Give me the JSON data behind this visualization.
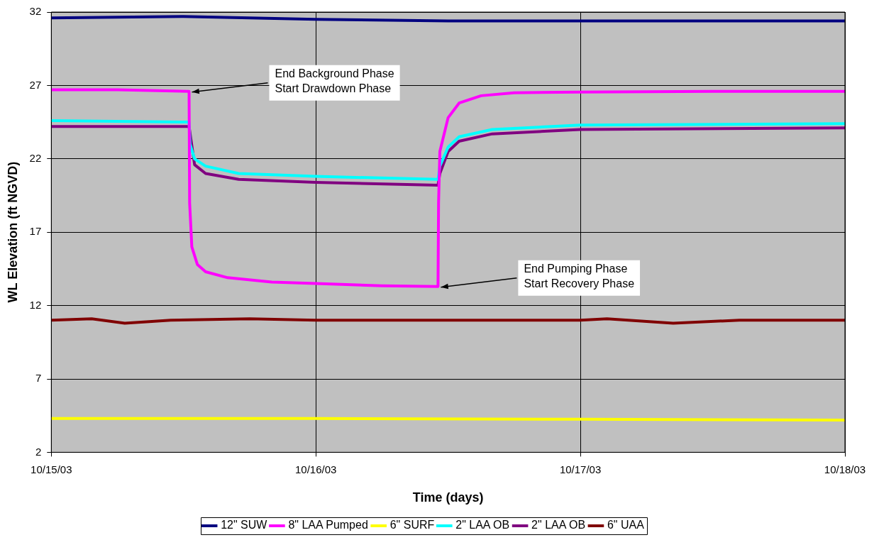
{
  "chart_data": {
    "type": "line",
    "xlabel": "Time (days)",
    "ylabel": "WL Elevation (ft NGVD)",
    "xlim": [
      "--10-15",
      "--10-18"
    ],
    "xticks": [
      {
        "value": "--10-15",
        "label": "10/15/03"
      },
      {
        "value": "--10-16",
        "label": "10/16/03"
      },
      {
        "value": "--10-17",
        "label": "10/17/03"
      },
      {
        "value": "--10-18",
        "label": "10/18/03"
      }
    ],
    "ylim": [
      2,
      32
    ],
    "yticks": [
      2,
      7,
      12,
      17,
      22,
      27,
      32
    ],
    "grid": true,
    "legend": "bottom",
    "marker": "none",
    "line_style": "solid",
    "series": [
      {
        "name": "12\" SUW",
        "color": "#000080",
        "x": [
          "--10-15",
          "--10-15T12:00",
          "--10-16",
          "--10-16T12:00",
          "--10-17",
          "--10-18"
        ],
        "values": [
          31.6,
          31.7,
          31.5,
          31.4,
          31.4,
          31.4
        ]
      },
      {
        "name": "8\" LAA Pumped",
        "color": "#ff00ff",
        "x": [
          "--10-15",
          "--10-15T06:00",
          "--10-15T12:30",
          "--10-15T12:33",
          "--10-15T12:45",
          "--10-15T13:15",
          "--10-15T14:00",
          "--10-15T16:00",
          "--10-15T20:00",
          "--10-16",
          "--10-16T06:00",
          "--10-16T11:05",
          "--10-16T11:08",
          "--10-16T11:15",
          "--10-16T12:00",
          "--10-16T13:00",
          "--10-16T15:00",
          "--10-16T18:00",
          "--10-17",
          "--10-17T12:00",
          "--10-18"
        ],
        "values": [
          26.7,
          26.7,
          26.6,
          19.0,
          16.0,
          14.8,
          14.3,
          13.9,
          13.6,
          13.5,
          13.35,
          13.3,
          19.0,
          22.5,
          24.8,
          25.8,
          26.3,
          26.5,
          26.55,
          26.6,
          26.6
        ]
      },
      {
        "name": "6\" SURF",
        "color": "#ffff00",
        "x": [
          "--10-15",
          "--10-16",
          "--10-17",
          "--10-18"
        ],
        "values": [
          4.3,
          4.3,
          4.25,
          4.2
        ]
      },
      {
        "name": "2\" LAA OB",
        "color": "#00ffff",
        "x": [
          "--10-15",
          "--10-15T12:30",
          "--10-15T12:35",
          "--10-15T13:00",
          "--10-15T14:00",
          "--10-15T17:00",
          "--10-16",
          "--10-16T11:05",
          "--10-16T11:15",
          "--10-16T12:00",
          "--10-16T13:00",
          "--10-16T16:00",
          "--10-17",
          "--10-18"
        ],
        "values": [
          24.6,
          24.5,
          23.0,
          22.0,
          21.5,
          21.0,
          20.8,
          20.6,
          21.5,
          22.8,
          23.5,
          24.0,
          24.3,
          24.4
        ]
      },
      {
        "name": "2\" LAA OB",
        "color": "#800080",
        "x": [
          "--10-15",
          "--10-15T12:30",
          "--10-15T13:00",
          "--10-15T14:00",
          "--10-15T17:00",
          "--10-16",
          "--10-16T11:05",
          "--10-16T11:15",
          "--10-16T12:00",
          "--10-16T13:00",
          "--10-16T16:00",
          "--10-17",
          "--10-18"
        ],
        "values": [
          24.2,
          24.2,
          21.6,
          21.0,
          20.6,
          20.4,
          20.2,
          21.0,
          22.5,
          23.2,
          23.7,
          24.0,
          24.1
        ]
      },
      {
        "name": "6\" UAA",
        "color": "#800000",
        "x": [
          "--10-15",
          "--10-15T03:40",
          "--10-15T06:40",
          "--10-15T10:50",
          "--10-15T18:00",
          "--10-16",
          "--10-16T07:10",
          "--10-16T12:00",
          "--10-17",
          "--10-17T02:25",
          "--10-17T08:25",
          "--10-17T14:25",
          "--10-18"
        ],
        "values": [
          11.0,
          11.1,
          10.8,
          11.0,
          11.1,
          11.0,
          11.0,
          11.0,
          11.0,
          11.1,
          10.8,
          11.0,
          11.0
        ]
      }
    ],
    "annotations": [
      {
        "text": "End Background Phase\nStart Drawdown Phase",
        "x": "--10-15T12:30",
        "y": 26.6
      },
      {
        "text": "End Pumping Phase\nStart Recovery Phase",
        "x": "--10-16T11:05",
        "y": 13.3
      }
    ]
  }
}
